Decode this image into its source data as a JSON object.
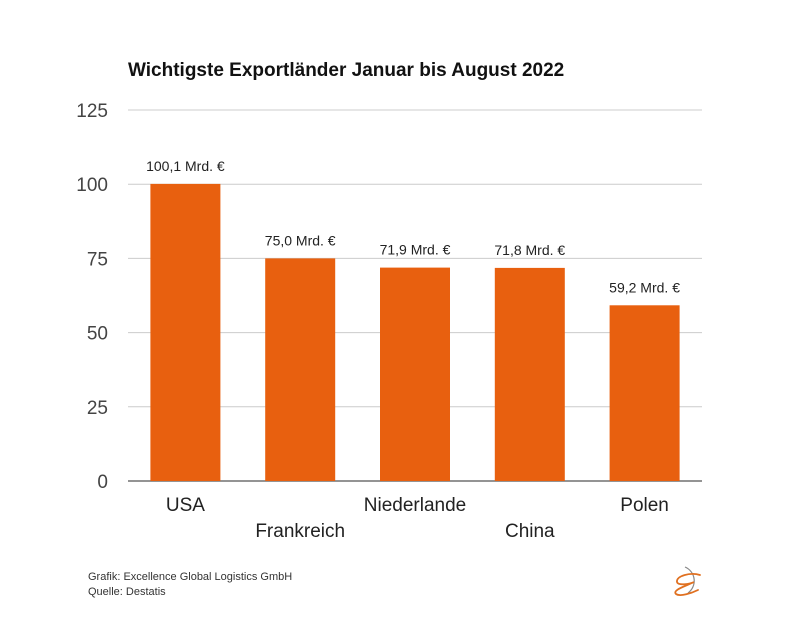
{
  "chart_data": {
    "type": "bar",
    "title": "Wichtigste Exportländer Januar bis August 2022",
    "categories": [
      "USA",
      "Frankreich",
      "Niederlande",
      "China",
      "Polen"
    ],
    "values": [
      100.1,
      75.0,
      71.9,
      71.8,
      59.2
    ],
    "data_labels": [
      "100,1 Mrd. €",
      "75,0 Mrd. €",
      "71,9 Mrd. €",
      "71,8 Mrd. €",
      "59,2 Mrd. €"
    ],
    "xlabel": "",
    "ylabel": "",
    "ylim": [
      0,
      125
    ],
    "yticks": [
      0,
      25,
      50,
      75,
      100,
      125
    ],
    "grid": true,
    "legend": "none",
    "bar_color": "#E8600F"
  },
  "footer": {
    "credit": "Grafik: Excellence Global Logistics GmbH",
    "source": "Quelle: Destatis"
  },
  "logo": {
    "name": "excellence-logo-icon",
    "color": "#E07020"
  }
}
